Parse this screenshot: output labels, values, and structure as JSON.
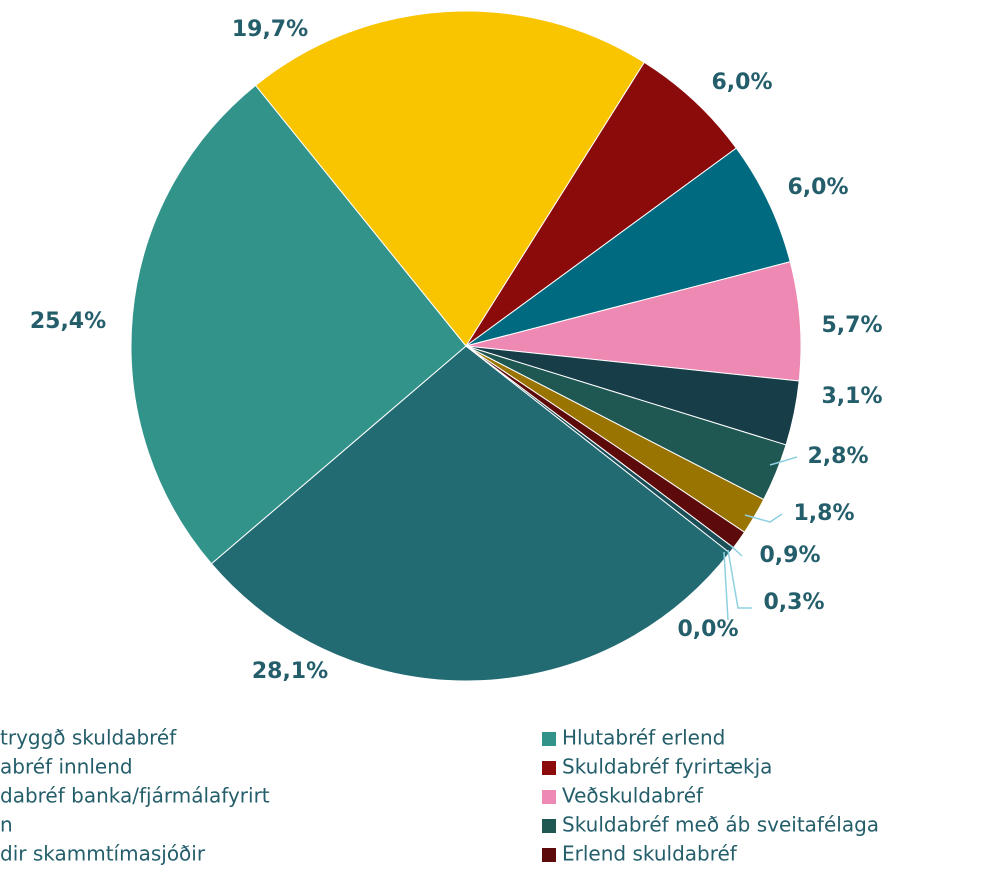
{
  "chart_data": {
    "type": "pie",
    "categories": [
      "tryggð skuldabréf",
      "Hlutabréf erlend",
      "abréf innlend",
      "Skuldabréf fyrirtækja",
      "dabréf banka/fjármálafyrirt",
      "Veðskuldabréf",
      "n",
      "Skuldabréf með áb sveitafélaga",
      "dir skammtímasjóðir",
      "Erlend skuldabréf",
      null,
      null
    ],
    "values": [
      28.1,
      25.4,
      19.7,
      6.0,
      6.0,
      5.7,
      3.1,
      2.8,
      1.8,
      0.9,
      0.3,
      0.0
    ],
    "value_labels": [
      "28,1%",
      "25,4%",
      "19,7%",
      "6,0%",
      "6,0%",
      "5,7%",
      "3,1%",
      "2,8%",
      "1,8%",
      "0,9%",
      "0,3%",
      "0,0%"
    ],
    "colors": [
      "#236b73",
      "#31938a",
      "#f9c400",
      "#8b0a0a",
      "#006b80",
      "#ed89b2",
      "#163d48",
      "#1f5752",
      "#9a7400",
      "#5c0a0a",
      "#1a4f5a",
      "#2b7d8a"
    ],
    "legend": "bottom"
  }
}
